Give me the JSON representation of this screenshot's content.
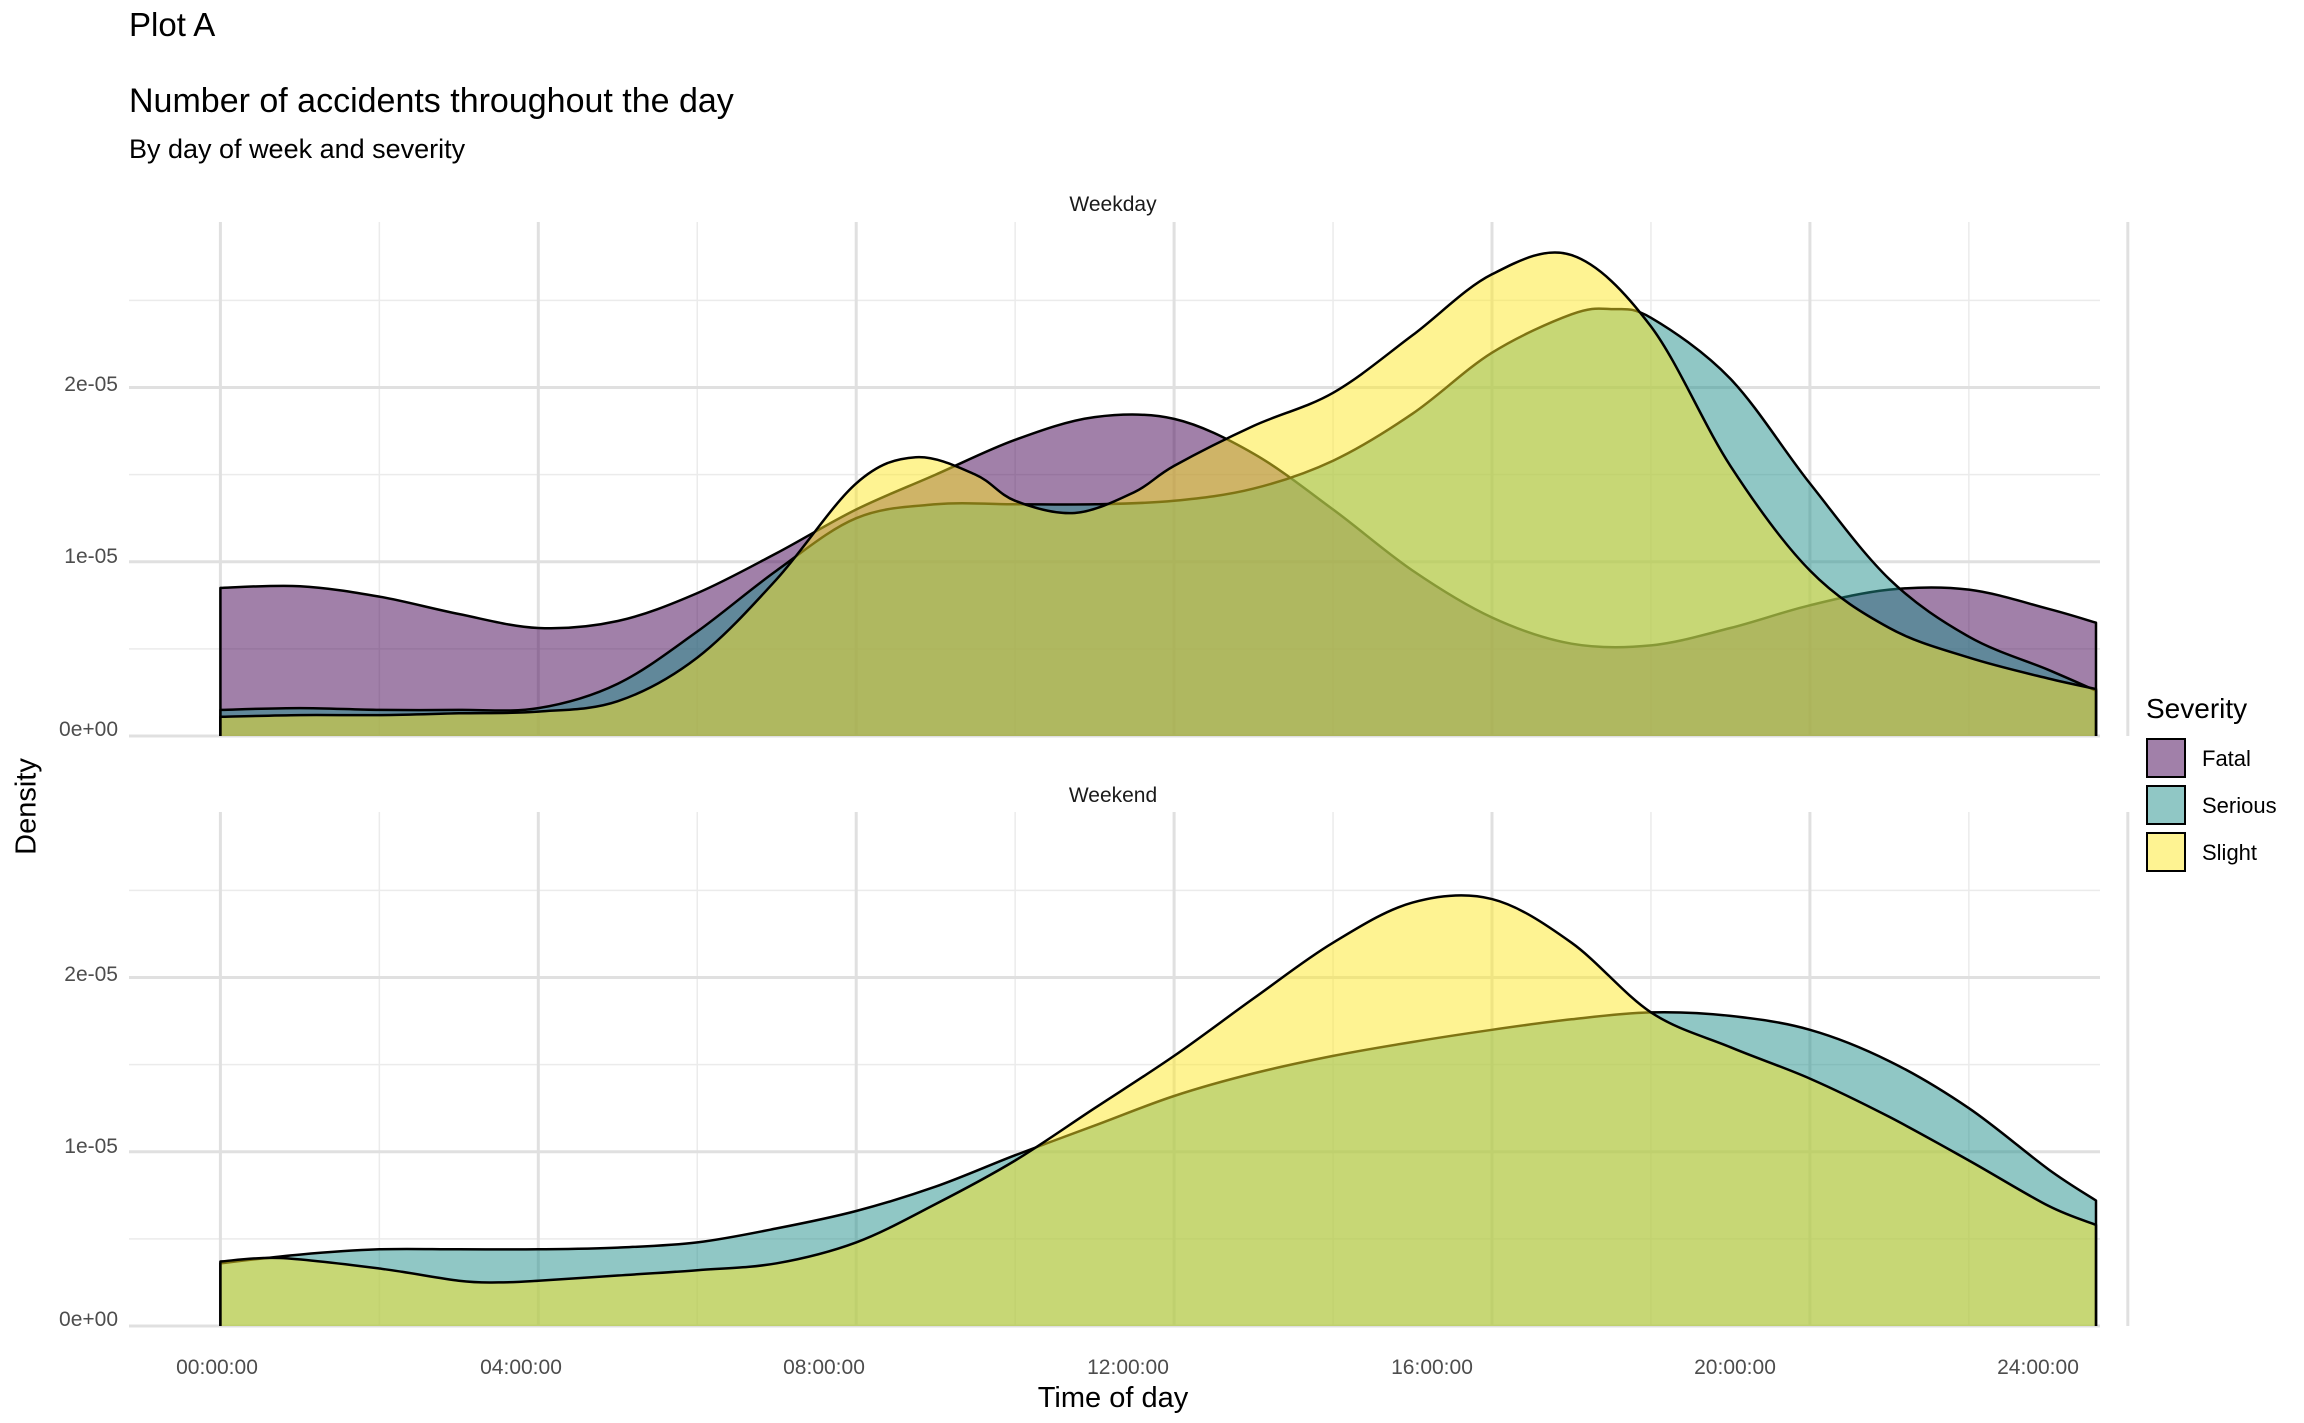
{
  "tag": "Plot A",
  "title": "Number of accidents throughout the day",
  "subtitle": "By day of week and severity",
  "chart_data": {
    "type": "area",
    "xlabel": "Time of day",
    "ylabel": "Density",
    "x_ticks": [
      "00:00:00",
      "04:00:00",
      "08:00:00",
      "12:00:00",
      "16:00:00",
      "20:00:00",
      "24:00:00"
    ],
    "y_ticks": [
      "0e+00",
      "1e-05",
      "2e-05"
    ],
    "ylim": [
      0,
      2.95e-05
    ],
    "xlim_hours": [
      -1.15,
      23.65
    ],
    "legend": {
      "title": "Severity",
      "position": "right",
      "items": [
        {
          "label": "Fatal",
          "color": "#440154"
        },
        {
          "label": "Serious",
          "color": "#21908C"
        },
        {
          "label": "Slight",
          "color": "#FDE725"
        }
      ]
    },
    "grid": true,
    "facets": [
      {
        "label": "Weekday",
        "series": [
          {
            "name": "Fatal",
            "x": [
              0,
              1,
              2,
              3,
              4,
              5,
              6,
              7,
              8,
              9,
              10,
              11,
              12,
              13,
              14,
              15,
              16,
              17,
              18,
              19,
              20,
              21,
              22,
              23,
              23.6
            ],
            "y": [
              8.5e-06,
              8.6e-06,
              8e-06,
              7e-06,
              6.2e-06,
              6.6e-06,
              8.2e-06,
              1.05e-05,
              1.3e-05,
              1.5e-05,
              1.7e-05,
              1.83e-05,
              1.82e-05,
              1.62e-05,
              1.3e-05,
              9.5e-06,
              6.8e-06,
              5.3e-06,
              5.2e-06,
              6.2e-06,
              7.5e-06,
              8.4e-06,
              8.4e-06,
              7.3e-06,
              6.5e-06
            ]
          },
          {
            "name": "Serious",
            "x": [
              0,
              1,
              2,
              3,
              4,
              5,
              6,
              7,
              8,
              9,
              10,
              11,
              12,
              13,
              14,
              15,
              16,
              17,
              17.5,
              18,
              19,
              20,
              21,
              22,
              23,
              23.6
            ],
            "y": [
              1.5e-06,
              1.6e-06,
              1.5e-06,
              1.5e-06,
              1.6e-06,
              3e-06,
              6e-06,
              9.5e-06,
              1.25e-05,
              1.33e-05,
              1.33e-05,
              1.33e-05,
              1.35e-05,
              1.42e-05,
              1.58e-05,
              1.85e-05,
              2.2e-05,
              2.42e-05,
              2.45e-05,
              2.4e-05,
              2.05e-05,
              1.45e-05,
              9e-06,
              5.7e-06,
              3.8e-06,
              2.6e-06
            ]
          },
          {
            "name": "Slight",
            "x": [
              0,
              1,
              2,
              3,
              4,
              5,
              6,
              7,
              8,
              8.75,
              9.5,
              10,
              10.75,
              11.5,
              12,
              13,
              14,
              15,
              16,
              17,
              18,
              19,
              20,
              21,
              22,
              23,
              23.6
            ],
            "y": [
              1.1e-06,
              1.2e-06,
              1.2e-06,
              1.3e-06,
              1.4e-06,
              2e-06,
              4.5e-06,
              9e-06,
              1.45e-05,
              1.6e-05,
              1.5e-05,
              1.35e-05,
              1.28e-05,
              1.4e-05,
              1.55e-05,
              1.78e-05,
              1.97e-05,
              2.3e-05,
              2.65e-05,
              2.76e-05,
              2.35e-05,
              1.55e-05,
              9.5e-06,
              6.2e-06,
              4.5e-06,
              3.3e-06,
              2.7e-06
            ]
          }
        ]
      },
      {
        "label": "Weekend",
        "series": [
          {
            "name": "Serious",
            "x": [
              0,
              1,
              2,
              3,
              4,
              5,
              6,
              7,
              8,
              9,
              10,
              11,
              12,
              13,
              14,
              15,
              16,
              17,
              18,
              19,
              20,
              21,
              22,
              23,
              23.6
            ],
            "y": [
              3.6e-06,
              4.1e-06,
              4.4e-06,
              4.4e-06,
              4.4e-06,
              4.5e-06,
              4.8e-06,
              5.6e-06,
              6.6e-06,
              8e-06,
              9.8e-06,
              1.15e-05,
              1.32e-05,
              1.45e-05,
              1.55e-05,
              1.63e-05,
              1.7e-05,
              1.76e-05,
              1.8e-05,
              1.78e-05,
              1.7e-05,
              1.52e-05,
              1.25e-05,
              9e-06,
              7.2e-06
            ]
          },
          {
            "name": "Slight",
            "x": [
              0,
              0.75,
              2,
              3,
              3.5,
              4,
              5,
              6,
              7,
              8,
              9,
              10,
              11,
              12,
              13,
              14,
              15,
              16,
              17,
              18,
              19,
              20,
              21,
              22,
              23,
              23.6
            ],
            "y": [
              3.7e-06,
              3.9e-06,
              3.3e-06,
              2.6e-06,
              2.5e-06,
              2.6e-06,
              2.9e-06,
              3.2e-06,
              3.6e-06,
              4.8e-06,
              7e-06,
              9.5e-06,
              1.25e-05,
              1.55e-05,
              1.88e-05,
              2.2e-05,
              2.43e-05,
              2.45e-05,
              2.2e-05,
              1.8e-05,
              1.6e-05,
              1.42e-05,
              1.2e-05,
              9.5e-06,
              6.9e-06,
              5.8e-06
            ]
          }
        ]
      }
    ]
  }
}
